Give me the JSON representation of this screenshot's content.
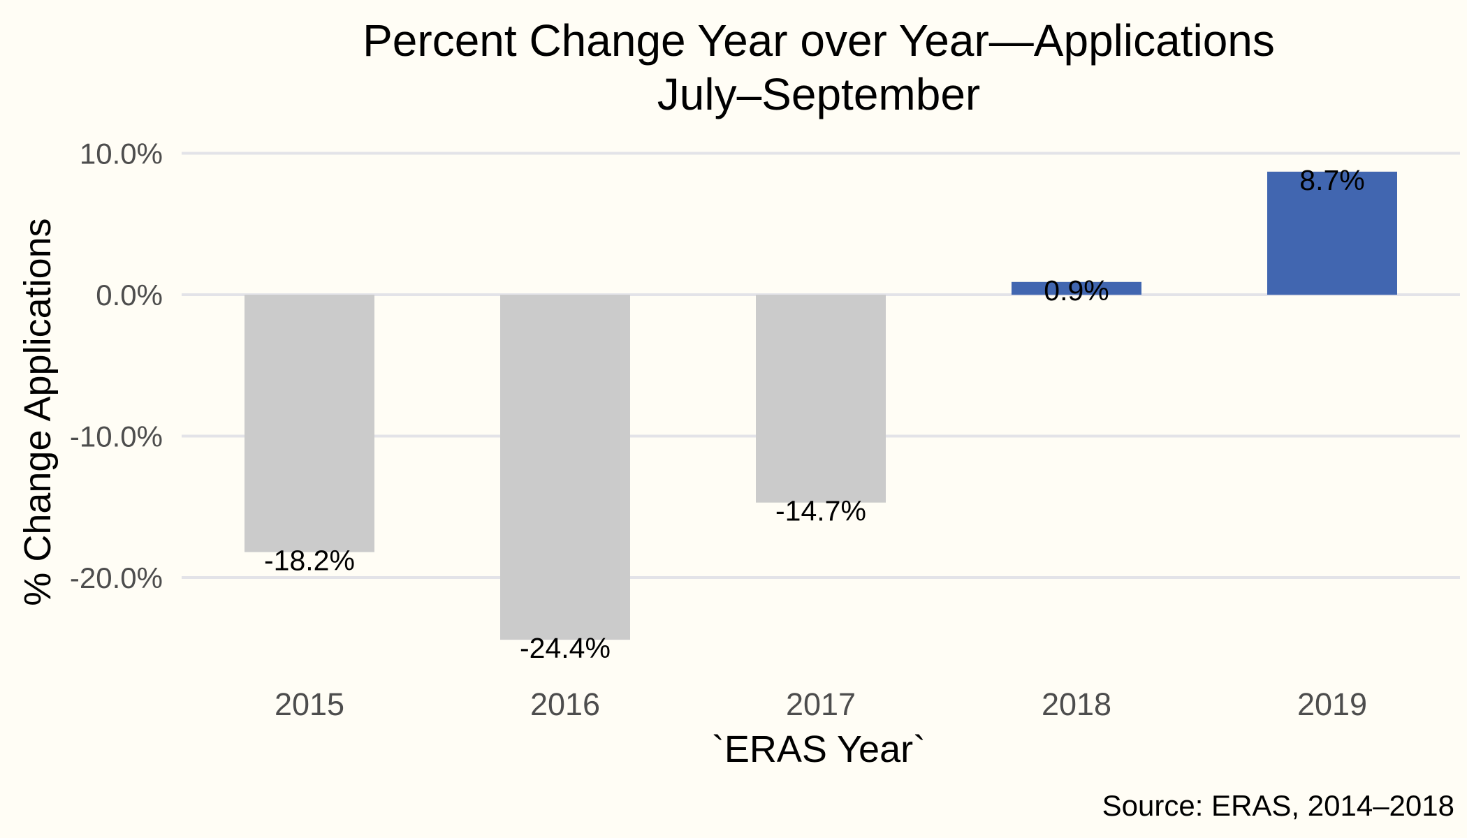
{
  "chart_data": {
    "type": "bar",
    "title_lines": [
      "Percent Change Year over Year—Applications",
      "July–September"
    ],
    "xlabel": "`ERAS Year`",
    "ylabel": "% Change Applications",
    "caption": "Source: ERAS, 2014–2018",
    "categories": [
      "2015",
      "2016",
      "2017",
      "2018",
      "2019"
    ],
    "values": [
      -18.2,
      -24.4,
      -14.7,
      0.9,
      8.7
    ],
    "value_labels": [
      "-18.2%",
      "-24.4%",
      "-14.7%",
      "0.9%",
      "8.7%"
    ],
    "ylim": [
      -26,
      11
    ],
    "yticks": [
      10,
      0,
      -10,
      -20
    ],
    "ytick_labels": [
      "10.0%",
      "0.0%",
      "-10.0%",
      "-20.0%"
    ],
    "grid": true,
    "legend": "none",
    "colors": {
      "negative": "#cbcbcb",
      "positive": "#4166b0",
      "background": "#fffdf5",
      "grid": "#e3e3e8"
    }
  }
}
